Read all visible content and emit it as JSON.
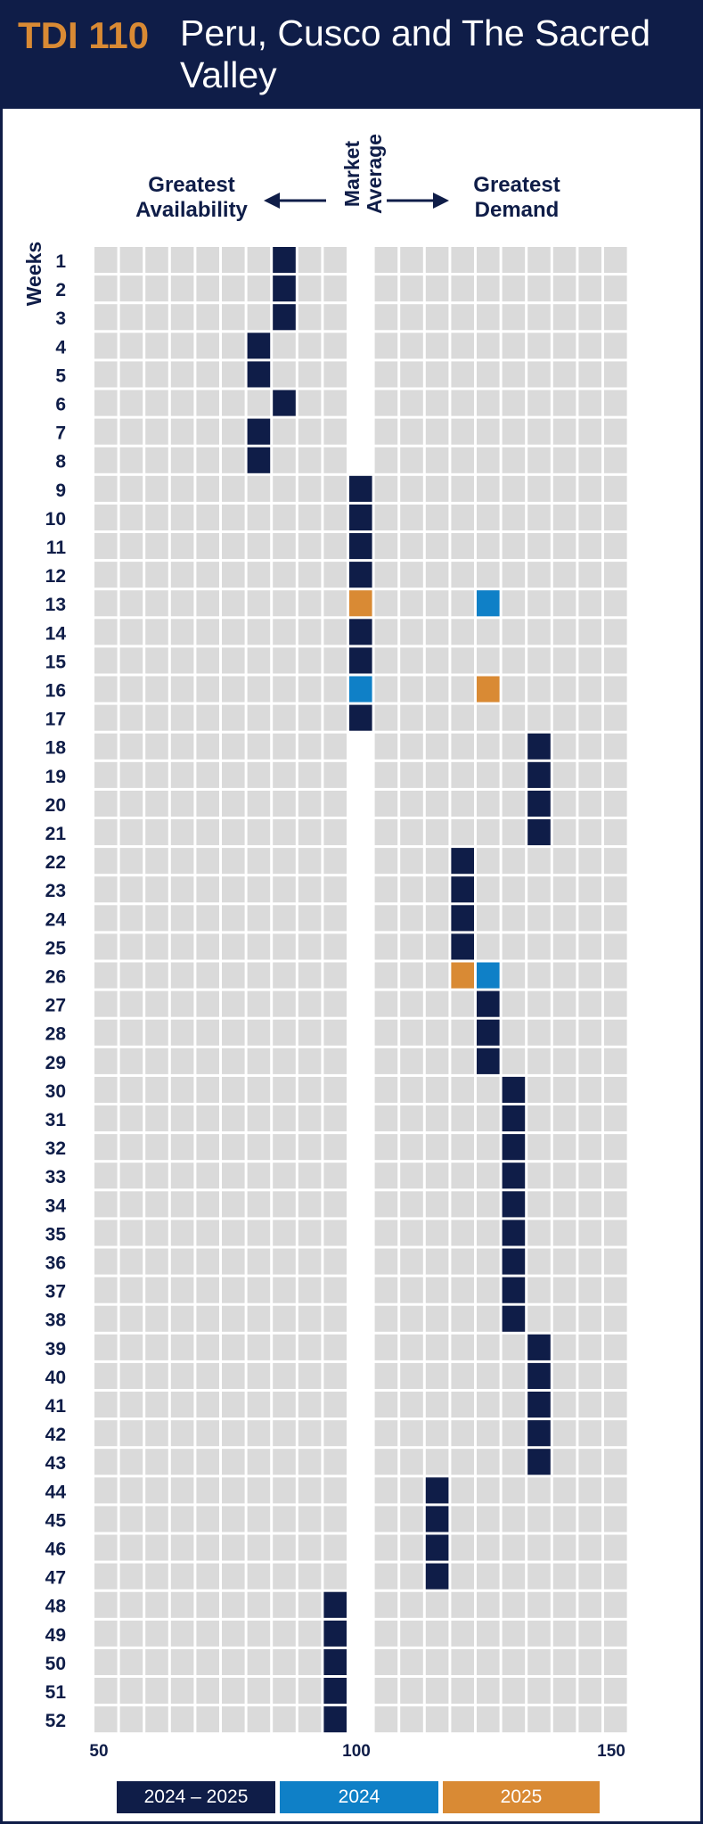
{
  "header": {
    "code": "TDI 110",
    "title": "Peru, Cusco and The Sacred Valley"
  },
  "labels": {
    "availability": "Greatest Availability",
    "demand": "Greatest Demand",
    "market_average": "Market Average",
    "weeks": "Weeks"
  },
  "colors": {
    "navy": "#0f1d48",
    "blue": "#0f80c7",
    "orange": "#d98a34",
    "cell": "#dadada"
  },
  "chart_data": {
    "type": "heatmap",
    "y_axis_label": "Weeks",
    "x_ticks": [
      "50",
      "100",
      "150"
    ],
    "x_range": [
      50,
      150
    ],
    "legend": [
      {
        "name": "2024 – 2025",
        "color": "#0f1d48"
      },
      {
        "name": "2024",
        "color": "#0f80c7"
      },
      {
        "name": "2025",
        "color": "#d98a34"
      }
    ],
    "weeks": [
      {
        "week": 1,
        "values": {
          "2024 – 2025": 85
        }
      },
      {
        "week": 2,
        "values": {
          "2024 – 2025": 85
        }
      },
      {
        "week": 3,
        "values": {
          "2024 – 2025": 85
        }
      },
      {
        "week": 4,
        "values": {
          "2024 – 2025": 80
        }
      },
      {
        "week": 5,
        "values": {
          "2024 – 2025": 80
        }
      },
      {
        "week": 6,
        "values": {
          "2024 – 2025": 85
        }
      },
      {
        "week": 7,
        "values": {
          "2024 – 2025": 80
        }
      },
      {
        "week": 8,
        "values": {
          "2024 – 2025": 80
        }
      },
      {
        "week": 9,
        "values": {
          "2024 – 2025": 100
        }
      },
      {
        "week": 10,
        "values": {
          "2024 – 2025": 100
        }
      },
      {
        "week": 11,
        "values": {
          "2024 – 2025": 100
        }
      },
      {
        "week": 12,
        "values": {
          "2024 – 2025": 100
        }
      },
      {
        "week": 13,
        "values": {
          "2025": 100,
          "2024": 125
        }
      },
      {
        "week": 14,
        "values": {
          "2024 – 2025": 100
        }
      },
      {
        "week": 15,
        "values": {
          "2024 – 2025": 100
        }
      },
      {
        "week": 16,
        "values": {
          "2024": 100,
          "2025": 125
        }
      },
      {
        "week": 17,
        "values": {
          "2024 – 2025": 100
        }
      },
      {
        "week": 18,
        "values": {
          "2024 – 2025": 135
        }
      },
      {
        "week": 19,
        "values": {
          "2024 – 2025": 135
        }
      },
      {
        "week": 20,
        "values": {
          "2024 – 2025": 135
        }
      },
      {
        "week": 21,
        "values": {
          "2024 – 2025": 135
        }
      },
      {
        "week": 22,
        "values": {
          "2024 – 2025": 120
        }
      },
      {
        "week": 23,
        "values": {
          "2024 – 2025": 120
        }
      },
      {
        "week": 24,
        "values": {
          "2024 – 2025": 120
        }
      },
      {
        "week": 25,
        "values": {
          "2024 – 2025": 120
        }
      },
      {
        "week": 26,
        "values": {
          "2025": 120,
          "2024": 125
        }
      },
      {
        "week": 27,
        "values": {
          "2024 – 2025": 125
        }
      },
      {
        "week": 28,
        "values": {
          "2024 – 2025": 125
        }
      },
      {
        "week": 29,
        "values": {
          "2024 – 2025": 125
        }
      },
      {
        "week": 30,
        "values": {
          "2024 – 2025": 130
        }
      },
      {
        "week": 31,
        "values": {
          "2024 – 2025": 130
        }
      },
      {
        "week": 32,
        "values": {
          "2024 – 2025": 130
        }
      },
      {
        "week": 33,
        "values": {
          "2024 – 2025": 130
        }
      },
      {
        "week": 34,
        "values": {
          "2024 – 2025": 130
        }
      },
      {
        "week": 35,
        "values": {
          "2024 – 2025": 130
        }
      },
      {
        "week": 36,
        "values": {
          "2024 – 2025": 130
        }
      },
      {
        "week": 37,
        "values": {
          "2024 – 2025": 130
        }
      },
      {
        "week": 38,
        "values": {
          "2024 – 2025": 130
        }
      },
      {
        "week": 39,
        "values": {
          "2024 – 2025": 135
        }
      },
      {
        "week": 40,
        "values": {
          "2024 – 2025": 135
        }
      },
      {
        "week": 41,
        "values": {
          "2024 – 2025": 135
        }
      },
      {
        "week": 42,
        "values": {
          "2024 – 2025": 135
        }
      },
      {
        "week": 43,
        "values": {
          "2024 – 2025": 135
        }
      },
      {
        "week": 44,
        "values": {
          "2024 – 2025": 115
        }
      },
      {
        "week": 45,
        "values": {
          "2024 – 2025": 115
        }
      },
      {
        "week": 46,
        "values": {
          "2024 – 2025": 115
        }
      },
      {
        "week": 47,
        "values": {
          "2024 – 2025": 115
        }
      },
      {
        "week": 48,
        "values": {
          "2024 – 2025": 95
        }
      },
      {
        "week": 49,
        "values": {
          "2024 – 2025": 95
        }
      },
      {
        "week": 50,
        "values": {
          "2024 – 2025": 95
        }
      },
      {
        "week": 51,
        "values": {
          "2024 – 2025": 95
        }
      },
      {
        "week": 52,
        "values": {
          "2024 – 2025": 95
        }
      }
    ]
  }
}
